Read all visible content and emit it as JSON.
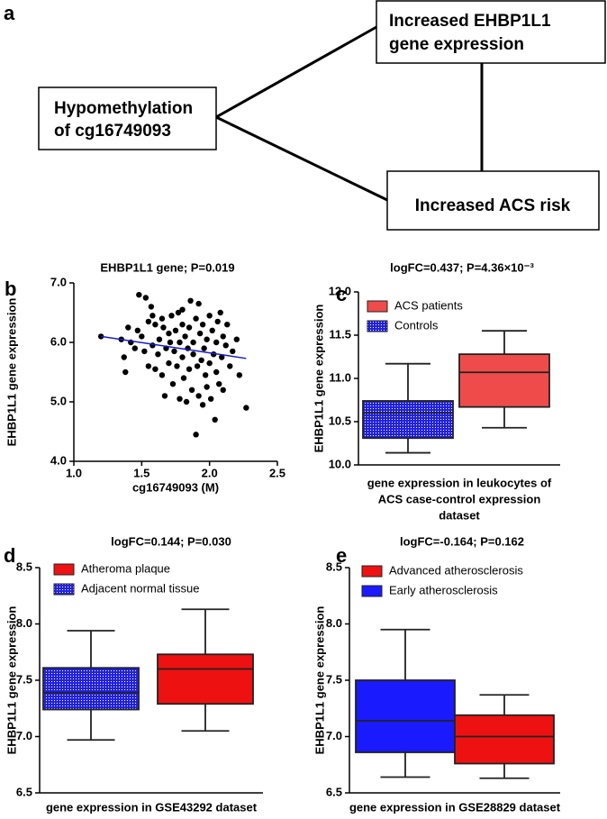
{
  "diagram": {
    "panel": "a",
    "nodes": [
      {
        "label": [
          "Hypomethylation",
          "of cg16749093"
        ]
      },
      {
        "label": [
          "Increased EHBP1L1",
          "gene expression"
        ]
      },
      {
        "label": [
          "Increased ACS risk"
        ]
      }
    ]
  },
  "chart_data": [
    {
      "type": "scatter",
      "panel": "b",
      "title": "EHBP1L1 gene; P=0.019",
      "xlabel": "cg16749093 (M)",
      "ylabel": "EHBP1L1 gene expression",
      "color": "#000000",
      "x": [
        1.2,
        1.35,
        1.37,
        1.38,
        1.4,
        1.42,
        1.45,
        1.47,
        1.48,
        1.5,
        1.52,
        1.53,
        1.55,
        1.55,
        1.57,
        1.58,
        1.6,
        1.6,
        1.62,
        1.63,
        1.65,
        1.65,
        1.67,
        1.68,
        1.7,
        1.7,
        1.72,
        1.73,
        1.74,
        1.75,
        1.76,
        1.77,
        1.78,
        1.78,
        1.8,
        1.8,
        1.81,
        1.82,
        1.83,
        1.84,
        1.85,
        1.85,
        1.86,
        1.87,
        1.88,
        1.88,
        1.9,
        1.9,
        1.91,
        1.92,
        1.93,
        1.94,
        1.95,
        1.95,
        1.96,
        1.97,
        1.98,
        1.98,
        2.0,
        2.0,
        2.01,
        2.02,
        2.03,
        2.04,
        2.05,
        2.05,
        2.06,
        2.07,
        2.08,
        2.09,
        2.1,
        2.1,
        2.12,
        2.13,
        2.15,
        2.17,
        2.2,
        2.22,
        2.27,
        1.92,
        1.71,
        1.66,
        1.58,
        1.8
      ],
      "y": [
        6.1,
        6.05,
        5.75,
        5.5,
        6.25,
        6.0,
        5.9,
        6.2,
        6.8,
        6.1,
        5.85,
        6.75,
        5.6,
        6.35,
        6.6,
        5.95,
        5.55,
        6.3,
        5.8,
        6.05,
        5.45,
        6.4,
        5.1,
        5.9,
        6.15,
        5.65,
        6.45,
        5.3,
        5.85,
        6.2,
        5.6,
        6.5,
        5.05,
        6.0,
        5.75,
        6.3,
        5.4,
        6.1,
        5.0,
        5.9,
        6.25,
        5.55,
        6.7,
        5.2,
        6.0,
        5.8,
        4.45,
        6.4,
        5.6,
        5.1,
        6.15,
        5.7,
        6.3,
        4.95,
        5.9,
        5.45,
        6.05,
        5.25,
        6.45,
        5.65,
        5.05,
        6.2,
        5.8,
        4.7,
        6.0,
        5.5,
        6.35,
        5.3,
        6.5,
        5.75,
        6.1,
        5.2,
        5.95,
        6.3,
        5.6,
        5.85,
        6.05,
        5.45,
        4.9,
        6.65,
        6.0,
        6.25,
        6.45,
        6.55
      ],
      "fit_line": {
        "x": [
          1.2,
          2.27
        ],
        "y": [
          6.1,
          5.73
        ],
        "color": "#1a1acc"
      },
      "xlim": [
        1.0,
        2.5
      ],
      "xticks": [
        {
          "value": 1.0,
          "label": "1.0"
        },
        {
          "value": 1.5,
          "label": "1.5"
        },
        {
          "value": 2.0,
          "label": "2.0"
        },
        {
          "value": 2.5,
          "label": "2.5"
        }
      ],
      "ylim": [
        4.0,
        7.0
      ],
      "yticks": [
        {
          "value": 4.0,
          "label": "4.0"
        },
        {
          "value": 5.0,
          "label": "5.0"
        },
        {
          "value": 6.0,
          "label": "6.0"
        },
        {
          "value": 7.0,
          "label": "7.0"
        }
      ]
    },
    {
      "type": "box",
      "panel": "c",
      "title": "logFC=0.437; P=4.36×10⁻³",
      "xlabel": [
        "gene expression in leukocytes of",
        "ACS case-control expression",
        "dataset"
      ],
      "ylabel": "EHBP1L1 gene expression",
      "series": [
        {
          "name": "Controls",
          "color": "#2222dd",
          "pattern": "dots",
          "min": 10.14,
          "q1": 10.31,
          "median": 10.6,
          "q3": 10.74,
          "max": 11.17
        },
        {
          "name": "ACS patients",
          "color": "#f04b4b",
          "pattern": "solid",
          "min": 10.43,
          "q1": 10.67,
          "median": 11.07,
          "q3": 11.28,
          "max": 11.55
        }
      ],
      "ylim": [
        10.0,
        12.0
      ],
      "yticks": [
        {
          "value": 10.0,
          "label": "10.0"
        },
        {
          "value": 10.5,
          "label": "10.5"
        },
        {
          "value": 11.0,
          "label": "11.0"
        },
        {
          "value": 11.5,
          "label": "11.5"
        },
        {
          "value": 12.0,
          "label": "12.0"
        }
      ]
    },
    {
      "type": "box",
      "panel": "d",
      "title": "logFC=0.144; P=0.030",
      "xlabel": "gene expression in GSE43292 dataset",
      "ylabel": "EHBP1L1 gene expression",
      "series": [
        {
          "name": "Adjacent normal tissue",
          "color": "#2222dd",
          "pattern": "dots",
          "min": 6.97,
          "q1": 7.24,
          "median": 7.39,
          "q3": 7.61,
          "max": 7.94
        },
        {
          "name": "Atheroma plaque",
          "color": "#ee1111",
          "pattern": "solid",
          "min": 7.05,
          "q1": 7.29,
          "median": 7.6,
          "q3": 7.73,
          "max": 8.13
        }
      ],
      "ylim": [
        6.5,
        8.5
      ],
      "yticks": [
        {
          "value": 6.5,
          "label": "6.5"
        },
        {
          "value": 7.0,
          "label": "7.0"
        },
        {
          "value": 7.5,
          "label": "7.5"
        },
        {
          "value": 8.0,
          "label": "8.0"
        },
        {
          "value": 8.5,
          "label": "8.5"
        }
      ]
    },
    {
      "type": "box",
      "panel": "e",
      "title": "logFC=-0.164; P=0.162",
      "xlabel": "gene expression in GSE28829 dataset",
      "ylabel": "EHBP1L1 gene expression",
      "series": [
        {
          "name": "Early atherosclerosis",
          "color": "#1a1aff",
          "pattern": "solid",
          "min": 6.64,
          "q1": 6.86,
          "median": 7.14,
          "q3": 7.5,
          "max": 7.95
        },
        {
          "name": "Advanced atherosclerosis",
          "color": "#ee1111",
          "pattern": "solid",
          "min": 6.63,
          "q1": 6.76,
          "median": 7.0,
          "q3": 7.19,
          "max": 7.37
        }
      ],
      "ylim": [
        6.5,
        8.5
      ],
      "yticks": [
        {
          "value": 6.5,
          "label": "6.5"
        },
        {
          "value": 7.0,
          "label": "7.0"
        },
        {
          "value": 7.5,
          "label": "7.5"
        },
        {
          "value": 8.0,
          "label": "8.0"
        },
        {
          "value": 8.5,
          "label": "8.5"
        }
      ]
    }
  ]
}
